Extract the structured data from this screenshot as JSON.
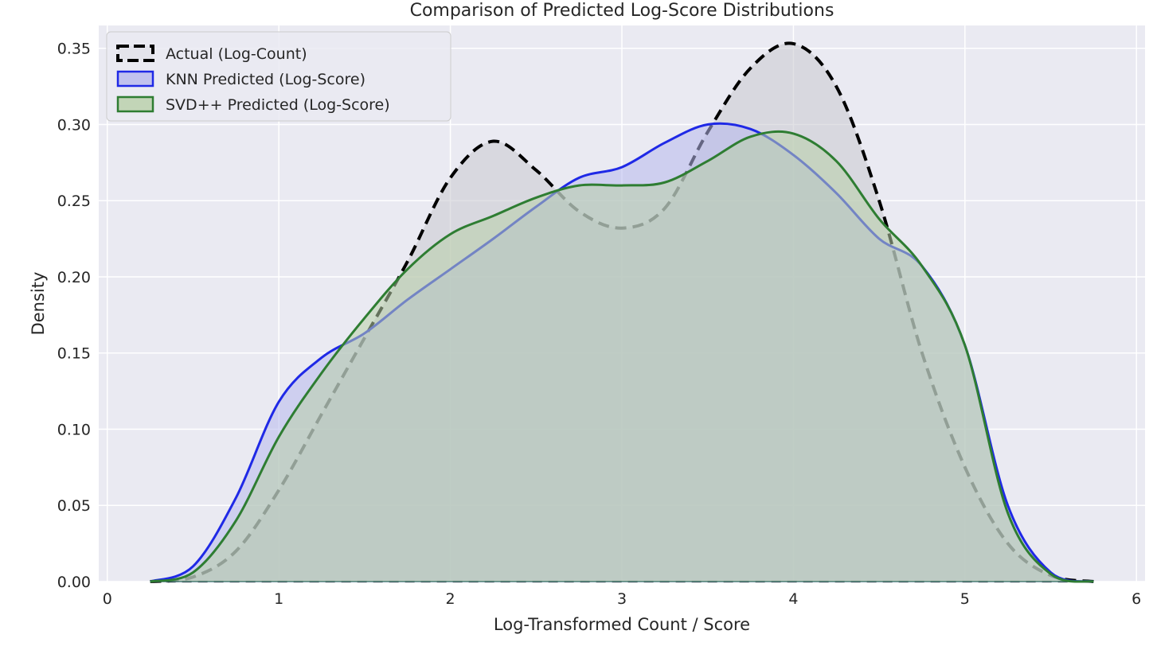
{
  "chart_data": {
    "type": "area",
    "title": "Comparison of Predicted Log-Score Distributions",
    "xlabel": "Log-Transformed Count / Score",
    "ylabel": "Density",
    "xlim": [
      -0.05,
      6.05
    ],
    "ylim": [
      0,
      0.365
    ],
    "xticks": [
      0,
      1,
      2,
      3,
      4,
      5,
      6
    ],
    "yticks": [
      0.0,
      0.05,
      0.1,
      0.15,
      0.2,
      0.25,
      0.3,
      0.35
    ],
    "ytick_labels": [
      "0.00",
      "0.05",
      "0.10",
      "0.15",
      "0.20",
      "0.25",
      "0.30",
      "0.35"
    ],
    "grid": true,
    "legend_position": "upper-left",
    "background_color": "#eaeaf2",
    "series": [
      {
        "name": "Actual (Log-Count)",
        "color": "#000000",
        "fill": "#c9c9d0",
        "style": "dashed",
        "x": [
          0.25,
          0.5,
          0.75,
          1.0,
          1.25,
          1.5,
          1.75,
          2.0,
          2.25,
          2.5,
          2.75,
          3.0,
          3.25,
          3.5,
          3.75,
          4.0,
          4.25,
          4.5,
          4.75,
          5.0,
          5.25,
          5.5,
          5.75
        ],
        "y": [
          0.0,
          0.003,
          0.02,
          0.06,
          0.11,
          0.16,
          0.21,
          0.265,
          0.289,
          0.27,
          0.243,
          0.232,
          0.245,
          0.295,
          0.337,
          0.353,
          0.325,
          0.25,
          0.15,
          0.075,
          0.025,
          0.004,
          0.0
        ]
      },
      {
        "name": "KNN Predicted (Log-Score)",
        "color": "#1f29e6",
        "fill": "#b7b8ec",
        "style": "solid",
        "x": [
          0.25,
          0.5,
          0.75,
          1.0,
          1.25,
          1.5,
          1.75,
          2.0,
          2.25,
          2.5,
          2.75,
          3.0,
          3.25,
          3.5,
          3.75,
          4.0,
          4.25,
          4.5,
          4.75,
          5.0,
          5.25,
          5.5,
          5.75
        ],
        "y": [
          0.0,
          0.01,
          0.055,
          0.118,
          0.147,
          0.163,
          0.185,
          0.205,
          0.225,
          0.246,
          0.265,
          0.272,
          0.288,
          0.3,
          0.297,
          0.28,
          0.255,
          0.225,
          0.207,
          0.155,
          0.05,
          0.006,
          0.0
        ]
      },
      {
        "name": "SVD++ Predicted (Log-Score)",
        "color": "#2e7d32",
        "fill": "#b8cfa8",
        "style": "solid",
        "x": [
          0.25,
          0.5,
          0.75,
          1.0,
          1.25,
          1.5,
          1.75,
          2.0,
          2.25,
          2.5,
          2.75,
          3.0,
          3.25,
          3.5,
          3.75,
          4.0,
          4.25,
          4.5,
          4.75,
          5.0,
          5.25,
          5.5,
          5.75
        ],
        "y": [
          0.0,
          0.006,
          0.04,
          0.095,
          0.137,
          0.173,
          0.205,
          0.228,
          0.24,
          0.252,
          0.26,
          0.26,
          0.262,
          0.276,
          0.292,
          0.294,
          0.276,
          0.238,
          0.207,
          0.155,
          0.045,
          0.005,
          0.0
        ]
      }
    ]
  }
}
